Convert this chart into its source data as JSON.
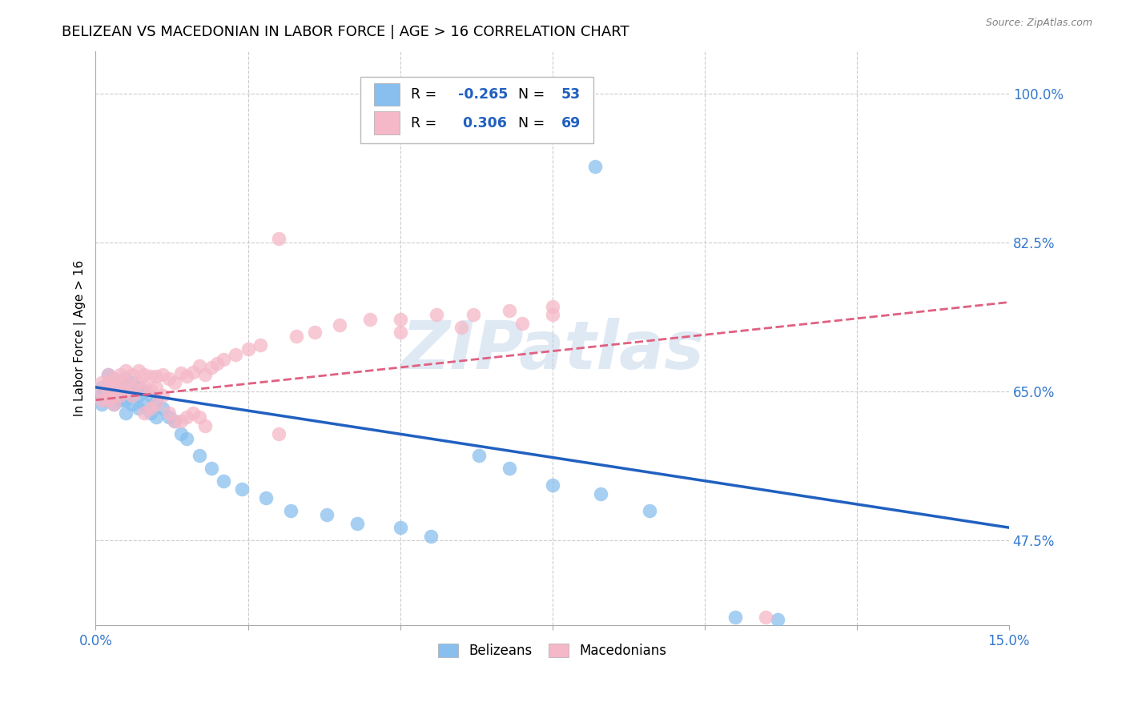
{
  "title": "BELIZEAN VS MACEDONIAN IN LABOR FORCE | AGE > 16 CORRELATION CHART",
  "source": "Source: ZipAtlas.com",
  "ylabel": "In Labor Force | Age > 16",
  "xlim": [
    0.0,
    0.15
  ],
  "ylim": [
    0.375,
    1.05
  ],
  "xticks": [
    0.0,
    0.025,
    0.05,
    0.075,
    0.1,
    0.125,
    0.15
  ],
  "xtick_labels": [
    "0.0%",
    "",
    "",
    "",
    "",
    "",
    "15.0%"
  ],
  "ytick_labels_right": [
    "100.0%",
    "82.5%",
    "65.0%",
    "47.5%"
  ],
  "ytick_vals_right": [
    1.0,
    0.825,
    0.65,
    0.475
  ],
  "belizean_color": "#88BFEE",
  "macedonian_color": "#F5B8C8",
  "belizean_line_color": "#2060C0",
  "macedonian_line_color": "#E06080",
  "watermark": "ZIPatlas",
  "bel_trend_x0": 0.0,
  "bel_trend_y0": 0.655,
  "bel_trend_x1": 0.15,
  "bel_trend_y1": 0.49,
  "mac_trend_x0": 0.0,
  "mac_trend_y0": 0.64,
  "mac_trend_x1": 0.15,
  "mac_trend_y1": 0.755,
  "belizean_x": [
    0.001,
    0.001,
    0.001,
    0.002,
    0.002,
    0.002,
    0.002,
    0.003,
    0.003,
    0.003,
    0.003,
    0.004,
    0.004,
    0.004,
    0.005,
    0.005,
    0.005,
    0.005,
    0.006,
    0.006,
    0.006,
    0.007,
    0.007,
    0.007,
    0.008,
    0.008,
    0.009,
    0.009,
    0.01,
    0.01,
    0.011,
    0.012,
    0.013,
    0.014,
    0.015,
    0.017,
    0.019,
    0.021,
    0.024,
    0.028,
    0.032,
    0.038,
    0.043,
    0.05,
    0.055,
    0.063,
    0.068,
    0.075,
    0.083,
    0.091,
    0.105,
    0.082,
    0.112
  ],
  "belizean_y": [
    0.655,
    0.645,
    0.635,
    0.67,
    0.66,
    0.65,
    0.64,
    0.665,
    0.655,
    0.645,
    0.635,
    0.66,
    0.65,
    0.64,
    0.665,
    0.655,
    0.64,
    0.625,
    0.66,
    0.65,
    0.635,
    0.655,
    0.645,
    0.63,
    0.65,
    0.635,
    0.645,
    0.625,
    0.64,
    0.62,
    0.63,
    0.62,
    0.615,
    0.6,
    0.595,
    0.575,
    0.56,
    0.545,
    0.535,
    0.525,
    0.51,
    0.505,
    0.495,
    0.49,
    0.48,
    0.575,
    0.56,
    0.54,
    0.53,
    0.51,
    0.385,
    0.915,
    0.382
  ],
  "macedonian_x": [
    0.001,
    0.001,
    0.001,
    0.002,
    0.002,
    0.002,
    0.002,
    0.003,
    0.003,
    0.003,
    0.003,
    0.004,
    0.004,
    0.004,
    0.005,
    0.005,
    0.005,
    0.006,
    0.006,
    0.006,
    0.007,
    0.007,
    0.008,
    0.008,
    0.009,
    0.009,
    0.01,
    0.01,
    0.011,
    0.012,
    0.013,
    0.014,
    0.015,
    0.016,
    0.017,
    0.018,
    0.019,
    0.02,
    0.021,
    0.023,
    0.025,
    0.027,
    0.03,
    0.033,
    0.036,
    0.04,
    0.045,
    0.05,
    0.056,
    0.062,
    0.068,
    0.075,
    0.03,
    0.05,
    0.06,
    0.07,
    0.075,
    0.008,
    0.009,
    0.01,
    0.011,
    0.012,
    0.013,
    0.014,
    0.015,
    0.016,
    0.017,
    0.018,
    0.11
  ],
  "macedonian_y": [
    0.66,
    0.65,
    0.64,
    0.67,
    0.66,
    0.65,
    0.64,
    0.665,
    0.655,
    0.645,
    0.635,
    0.67,
    0.66,
    0.645,
    0.675,
    0.66,
    0.65,
    0.67,
    0.655,
    0.645,
    0.675,
    0.66,
    0.67,
    0.655,
    0.668,
    0.652,
    0.668,
    0.655,
    0.67,
    0.665,
    0.66,
    0.672,
    0.668,
    0.673,
    0.68,
    0.67,
    0.678,
    0.683,
    0.688,
    0.693,
    0.7,
    0.705,
    0.83,
    0.715,
    0.72,
    0.728,
    0.735,
    0.735,
    0.74,
    0.74,
    0.745,
    0.75,
    0.6,
    0.72,
    0.725,
    0.73,
    0.74,
    0.625,
    0.63,
    0.635,
    0.645,
    0.625,
    0.615,
    0.615,
    0.62,
    0.625,
    0.62,
    0.61,
    0.385
  ]
}
